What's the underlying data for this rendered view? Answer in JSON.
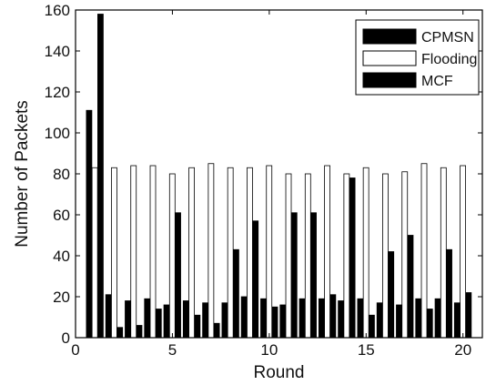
{
  "chart_data": {
    "type": "bar",
    "title": "",
    "xlabel": "Round",
    "ylabel": "Number of Packets",
    "xlim": [
      0,
      21
    ],
    "ylim": [
      0,
      160
    ],
    "xticks": [
      0,
      5,
      10,
      15,
      20
    ],
    "yticks": [
      0,
      20,
      40,
      60,
      80,
      100,
      120,
      140,
      160
    ],
    "grid": false,
    "legend_position": "top-right",
    "x": [
      1,
      2,
      3,
      4,
      5,
      6,
      7,
      8,
      9,
      10,
      11,
      12,
      13,
      14,
      15,
      16,
      17,
      18,
      19,
      20
    ],
    "series": [
      {
        "name": "CPMSN",
        "fill": "#000000",
        "values": [
          111,
          21,
          18,
          19,
          16,
          18,
          17,
          17,
          20,
          19,
          16,
          19,
          19,
          18,
          19,
          17,
          16,
          19,
          19,
          17
        ]
      },
      {
        "name": "Flooding",
        "fill": "#ffffff",
        "values": [
          83,
          83,
          84,
          84,
          80,
          83,
          85,
          83,
          83,
          84,
          80,
          80,
          84,
          80,
          83,
          80,
          81,
          85,
          83,
          84
        ]
      },
      {
        "name": "MCF",
        "fill": "#000000",
        "values": [
          158,
          5,
          6,
          14,
          61,
          11,
          7,
          43,
          57,
          15,
          61,
          61,
          21,
          78,
          11,
          42,
          50,
          14,
          43,
          22
        ]
      }
    ]
  }
}
